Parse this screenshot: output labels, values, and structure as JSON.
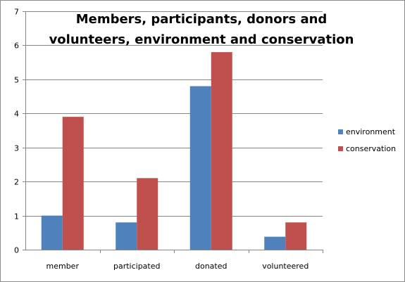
{
  "chart_data": {
    "type": "bar",
    "title": "Members, participants, donors and volunteers, environment and conservation",
    "title_lines": [
      "Members, participants, donors and",
      "volunteers, environment and conservation"
    ],
    "categories": [
      "member",
      "participated",
      "donated",
      "volunteered"
    ],
    "series": [
      {
        "name": "environment",
        "values": [
          1.0,
          0.8,
          4.8,
          0.38
        ],
        "color": "#4f81bd"
      },
      {
        "name": "conservation",
        "values": [
          3.9,
          2.1,
          5.8,
          0.8
        ],
        "color": "#c0504d"
      }
    ],
    "xlabel": "",
    "ylabel": "",
    "ylim": [
      0,
      7
    ],
    "yticks": [
      "0",
      "1",
      "2",
      "3",
      "4",
      "5",
      "6",
      "7"
    ],
    "grid": true,
    "legend_position": "right"
  }
}
